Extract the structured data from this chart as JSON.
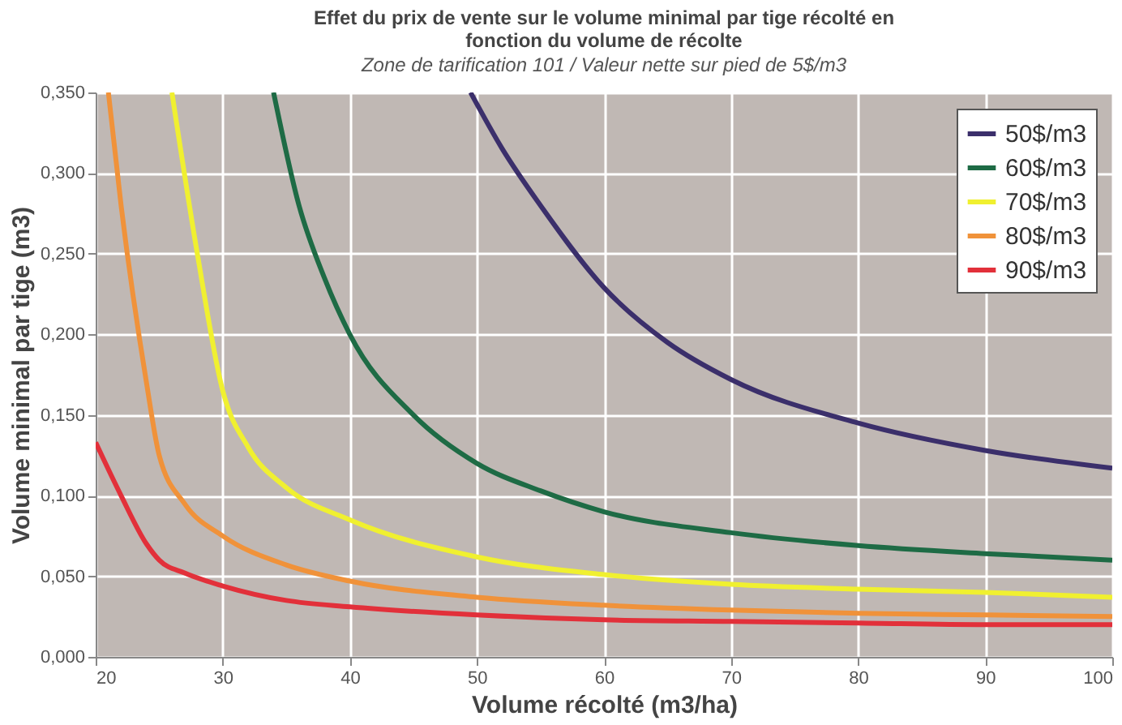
{
  "chart_data": {
    "type": "line",
    "title": "Effet du prix de vente sur le volume minimal par tige récolté en fonction du volume de récolte",
    "subtitle": "Zone de tarification 101 / Valeur nette sur pied de 5$/m3",
    "xlabel": "Volume récolté (m3/ha)",
    "ylabel": "Volume minimal par tige (m3)",
    "xlim": [
      20,
      100
    ],
    "xticks": [
      20,
      30,
      40,
      50,
      60,
      70,
      80,
      90,
      100
    ],
    "ylim": [
      0,
      0.35
    ],
    "yticks": [
      {
        "value": 0,
        "label": "0,000"
      },
      {
        "value": 0.05,
        "label": "0,050"
      },
      {
        "value": 0.1,
        "label": "0,100"
      },
      {
        "value": 0.15,
        "label": "0,150"
      },
      {
        "value": 0.2,
        "label": "0,200"
      },
      {
        "value": 0.25,
        "label": "0,250"
      },
      {
        "value": 0.3,
        "label": "0,300"
      },
      {
        "value": 0.35,
        "label": "0,350"
      }
    ],
    "grid": true,
    "legend": "top right",
    "marker": "none",
    "line_style": "solid",
    "series": [
      {
        "name": "50$/m3",
        "color": "#3b2f6b",
        "x": [
          49.5,
          52,
          55,
          60,
          65,
          70,
          80,
          90,
          100
        ],
        "values": [
          0.35,
          0.315,
          0.28,
          0.229,
          0.195,
          0.172,
          0.145,
          0.128,
          0.117
        ]
      },
      {
        "name": "60$/m3",
        "color": "#1e6b45",
        "x": [
          34,
          36,
          38,
          40,
          45,
          50,
          55,
          60,
          70,
          80,
          90,
          100
        ],
        "values": [
          0.35,
          0.28,
          0.235,
          0.2,
          0.15,
          0.12,
          0.103,
          0.09,
          0.077,
          0.069,
          0.064,
          0.06
        ]
      },
      {
        "name": "70$/m3",
        "color": "#f0f030",
        "x": [
          26,
          28,
          30,
          32,
          35,
          40,
          50,
          60,
          70,
          80,
          90,
          100
        ],
        "values": [
          0.35,
          0.25,
          0.165,
          0.13,
          0.105,
          0.085,
          0.062,
          0.051,
          0.045,
          0.042,
          0.04,
          0.037
        ]
      },
      {
        "name": "80$/m3",
        "color": "#f0923a",
        "x": [
          21,
          22,
          24,
          25,
          27,
          30,
          35,
          40,
          50,
          60,
          70,
          80,
          90,
          100
        ],
        "values": [
          0.35,
          0.28,
          0.17,
          0.125,
          0.095,
          0.075,
          0.057,
          0.047,
          0.037,
          0.032,
          0.029,
          0.027,
          0.026,
          0.025
        ]
      },
      {
        "name": "90$/m3",
        "color": "#e2303a",
        "x": [
          20,
          22,
          24,
          25,
          27,
          30,
          35,
          40,
          50,
          60,
          70,
          80,
          90,
          100
        ],
        "values": [
          0.133,
          0.1,
          0.07,
          0.06,
          0.052,
          0.044,
          0.035,
          0.031,
          0.026,
          0.023,
          0.022,
          0.021,
          0.02,
          0.02
        ]
      }
    ]
  }
}
